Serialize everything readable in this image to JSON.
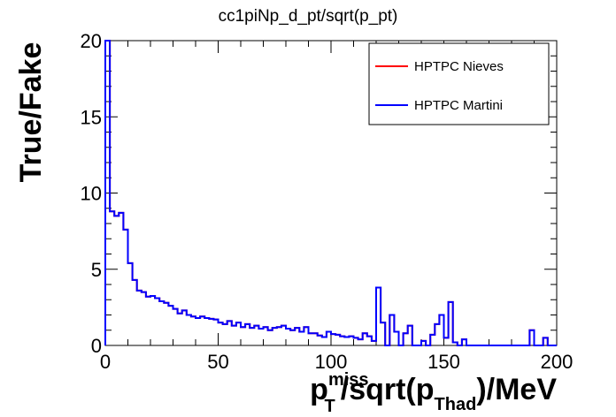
{
  "chart_data": {
    "type": "step",
    "title": "cc1piNp_d_pt/sqrt(p_pt)",
    "ylabel": "True/Fake",
    "xlabel": {
      "base1": "p",
      "sup1": "miss",
      "sub1": "T",
      "mid": "/sqrt(p",
      "sub2": "Thad",
      "end": ")/MeV"
    },
    "xlim": [
      0,
      200
    ],
    "ylim": [
      0,
      20
    ],
    "x_ticks": [
      "0",
      "50",
      "100",
      "150",
      "200"
    ],
    "y_ticks": [
      "0",
      "5",
      "10",
      "15",
      "20"
    ],
    "bin_width": 2,
    "series": [
      {
        "name": "HPTPC Nieves",
        "color": "#ff0000",
        "values": [
          20,
          8.8,
          8.5,
          8.7,
          7.6,
          5.4,
          4.3,
          3.6,
          3.5,
          3.2,
          3.25,
          3.1,
          2.9,
          2.8,
          2.6,
          2.4,
          2.1,
          2.3,
          2.0,
          1.9,
          1.8,
          1.9,
          1.8,
          1.75,
          1.7,
          1.5,
          1.4,
          1.6,
          1.3,
          1.5,
          1.2,
          1.4,
          1.15,
          1.3,
          1.1,
          1.2,
          1.0,
          1.15,
          1.2,
          1.3,
          1.1,
          1.0,
          1.15,
          0.9,
          1.2,
          0.8,
          0.8,
          0.65,
          0.55,
          0.9,
          0.75,
          0.7,
          0.6,
          0.55,
          0.6,
          0.5,
          0.4,
          0.8,
          0.6,
          0.3,
          0.5,
          0.35,
          0.4,
          0.6,
          1.15,
          0.4,
          0.6,
          1.2,
          0.7,
          0.6,
          0.7,
          0.4,
          0.35,
          0.5,
          0,
          0.3,
          0.2,
          0.15,
          0.3,
          0.25,
          0.3,
          0.35,
          0.25,
          0.3,
          0,
          0.25,
          0,
          0,
          0,
          0,
          0,
          0,
          0,
          0,
          0,
          0,
          0,
          0,
          0,
          0
        ]
      },
      {
        "name": "HPTPC Martini",
        "color": "#0000ff",
        "values": [
          20,
          8.8,
          8.5,
          8.7,
          7.6,
          5.4,
          4.3,
          3.6,
          3.5,
          3.2,
          3.25,
          3.1,
          2.9,
          2.8,
          2.6,
          2.4,
          2.1,
          2.3,
          2.0,
          1.9,
          1.8,
          1.9,
          1.8,
          1.75,
          1.7,
          1.5,
          1.4,
          1.6,
          1.3,
          1.5,
          1.2,
          1.4,
          1.15,
          1.3,
          1.1,
          1.2,
          1.0,
          1.15,
          1.2,
          1.3,
          1.1,
          1.0,
          1.15,
          0.9,
          1.2,
          0.8,
          0.8,
          0.65,
          0.55,
          0.9,
          0.75,
          0.7,
          0.6,
          0.55,
          0.6,
          0.5,
          0.4,
          0.8,
          0.6,
          0.3,
          0.5,
          0.35,
          0.4,
          0.6,
          1.15,
          0.4,
          0.6,
          1.2,
          0.7,
          0.6,
          0.7,
          0.4,
          0.35,
          0.5,
          0,
          0.3,
          0.2,
          0.15,
          0.3,
          0.25,
          0.3,
          0.35,
          0.25,
          0.3,
          0,
          0.25,
          0,
          0,
          0,
          0,
          0,
          0,
          0,
          0,
          0,
          0,
          0,
          0,
          0,
          0
        ]
      }
    ],
    "special_bins": [
      {
        "x0": 120,
        "x1": 122,
        "value": 3.8
      },
      {
        "x0": 122,
        "x1": 124,
        "value": 1.5
      },
      {
        "x0": 126,
        "x1": 128,
        "value": 2.0
      },
      {
        "x0": 128,
        "x1": 130,
        "value": 0.9
      },
      {
        "x0": 132,
        "x1": 134,
        "value": 0.8
      },
      {
        "x0": 134,
        "x1": 136,
        "value": 1.3
      },
      {
        "x0": 140,
        "x1": 142,
        "value": 0.3
      },
      {
        "x0": 144,
        "x1": 146,
        "value": 0.7
      },
      {
        "x0": 146,
        "x1": 148,
        "value": 1.4
      },
      {
        "x0": 148,
        "x1": 150,
        "value": 2.0
      },
      {
        "x0": 150,
        "x1": 152,
        "value": 0.5
      },
      {
        "x0": 152,
        "x1": 154,
        "value": 2.85
      },
      {
        "x0": 154,
        "x1": 156,
        "value": 0.2
      },
      {
        "x0": 158,
        "x1": 160,
        "value": 0.4
      },
      {
        "x0": 186,
        "x1": 188,
        "value": 0
      },
      {
        "x0": 188,
        "x1": 190,
        "value": 1.0
      },
      {
        "x0": 194,
        "x1": 196,
        "value": 0.5
      }
    ],
    "legend_placement": "top-right",
    "grid": false
  }
}
